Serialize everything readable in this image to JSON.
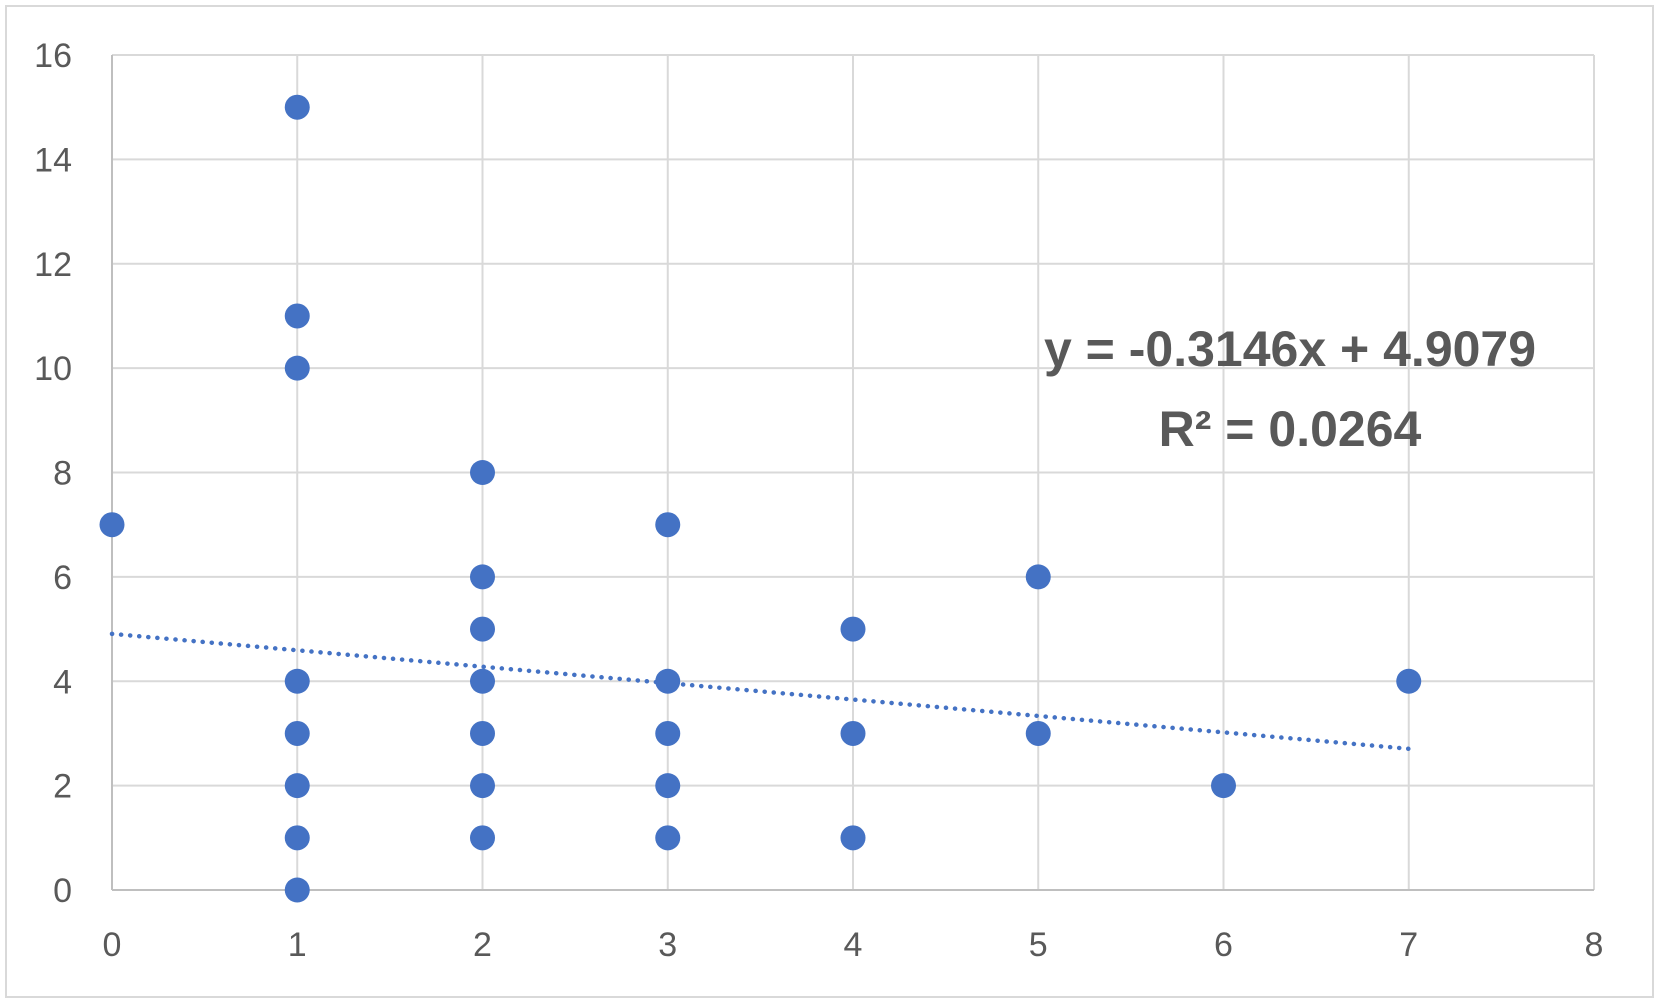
{
  "chart_data": {
    "type": "scatter",
    "title": "",
    "xlabel": "",
    "ylabel": "",
    "xlim": [
      0,
      8
    ],
    "ylim": [
      0,
      16
    ],
    "x_ticks": [
      "0",
      "1",
      "2",
      "3",
      "4",
      "5",
      "6",
      "7",
      "8"
    ],
    "y_ticks": [
      "0",
      "2",
      "4",
      "6",
      "8",
      "10",
      "12",
      "14",
      "16"
    ],
    "grid": true,
    "legend": "none",
    "marker_color": "#4472c4",
    "series": [
      {
        "points": [
          {
            "x": 0,
            "y": 7
          },
          {
            "x": 1,
            "y": 15
          },
          {
            "x": 1,
            "y": 11
          },
          {
            "x": 1,
            "y": 10
          },
          {
            "x": 1,
            "y": 4
          },
          {
            "x": 1,
            "y": 3
          },
          {
            "x": 1,
            "y": 2
          },
          {
            "x": 1,
            "y": 1
          },
          {
            "x": 1,
            "y": 0
          },
          {
            "x": 2,
            "y": 8
          },
          {
            "x": 2,
            "y": 6
          },
          {
            "x": 2,
            "y": 5
          },
          {
            "x": 2,
            "y": 4
          },
          {
            "x": 2,
            "y": 3
          },
          {
            "x": 2,
            "y": 2
          },
          {
            "x": 2,
            "y": 1
          },
          {
            "x": 3,
            "y": 7
          },
          {
            "x": 3,
            "y": 4
          },
          {
            "x": 3,
            "y": 3
          },
          {
            "x": 3,
            "y": 2
          },
          {
            "x": 3,
            "y": 1
          },
          {
            "x": 4,
            "y": 5
          },
          {
            "x": 4,
            "y": 3
          },
          {
            "x": 4,
            "y": 1
          },
          {
            "x": 5,
            "y": 6
          },
          {
            "x": 5,
            "y": 3
          },
          {
            "x": 6,
            "y": 2
          },
          {
            "x": 7,
            "y": 4
          }
        ]
      }
    ],
    "trendline": {
      "type": "linear",
      "style": "dotted",
      "slope": -0.3146,
      "intercept": 4.9079,
      "x_range": [
        0,
        7
      ]
    },
    "annotations": {
      "equation": "y = -0.3146x + 4.9079",
      "r_squared": "R² = 0.0264"
    }
  }
}
